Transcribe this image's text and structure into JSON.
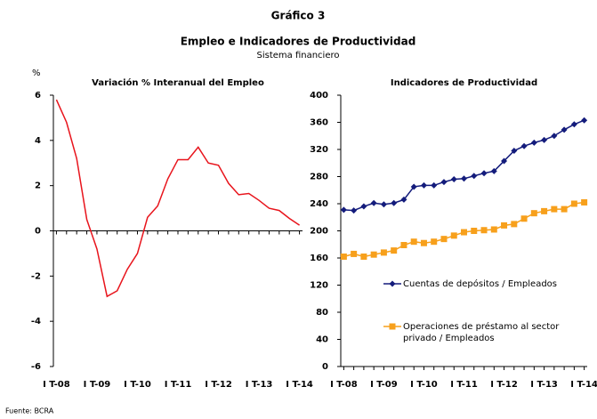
{
  "header": {
    "title": "Gráfico 3",
    "subtitle": "Empleo e Indicadores de Productividad",
    "note": "Sistema financiero"
  },
  "source": "Fuente: BCRA",
  "chart_data": [
    {
      "type": "line",
      "title": "Variación % Interanual del Empleo",
      "y_label": "%",
      "categories": [
        "I T-08",
        null,
        null,
        null,
        "I T-09",
        null,
        null,
        null,
        "I T-10",
        null,
        null,
        null,
        "I T-11",
        null,
        null,
        null,
        "I T-12",
        null,
        null,
        null,
        "I T-13",
        null,
        null,
        null,
        "I T-14"
      ],
      "series": [
        {
          "name": "Variación % Interanual del Empleo",
          "color": "#e8141c",
          "values": [
            5.8,
            4.8,
            3.2,
            0.5,
            -0.8,
            -2.9,
            -2.65,
            -1.7,
            -1.0,
            0.6,
            1.1,
            2.3,
            3.15,
            3.15,
            3.7,
            3.0,
            2.9,
            2.1,
            1.6,
            1.65,
            1.35,
            1.0,
            0.9,
            0.55,
            0.25
          ]
        }
      ],
      "ylim": [
        -6,
        6
      ],
      "yticks": [
        -6,
        -4,
        -2,
        0,
        2,
        4,
        6
      ],
      "legend": false
    },
    {
      "type": "line",
      "title": "Indicadores de Productividad",
      "categories": [
        "I T-08",
        null,
        null,
        null,
        "I T-09",
        null,
        null,
        null,
        "I T-10",
        null,
        null,
        null,
        "I T-11",
        null,
        null,
        null,
        "I T-12",
        null,
        null,
        null,
        "I T-13",
        null,
        null,
        null,
        "I T-14"
      ],
      "series": [
        {
          "name": "Cuentas de depósitos / Empleados",
          "color": "#141c7c",
          "marker": "diamond",
          "values": [
            231,
            230,
            236,
            241,
            239,
            241,
            246,
            265,
            267,
            267,
            272,
            276,
            277,
            281,
            285,
            288,
            303,
            318,
            325,
            330,
            334,
            340,
            349,
            357,
            363
          ]
        },
        {
          "name": "Operaciones de préstamo al sector privado / Empleados",
          "color": "#f7a01c",
          "marker": "square",
          "values": [
            162,
            166,
            162,
            165,
            168,
            171,
            179,
            184,
            182,
            184,
            188,
            193,
            198,
            200,
            201,
            202,
            208,
            210,
            218,
            226,
            229,
            232,
            232,
            240,
            242
          ]
        }
      ],
      "ylim": [
        0,
        400
      ],
      "yticks": [
        0,
        40,
        80,
        120,
        160,
        200,
        240,
        280,
        320,
        360,
        400
      ],
      "legend": "inside-lower-right"
    }
  ]
}
